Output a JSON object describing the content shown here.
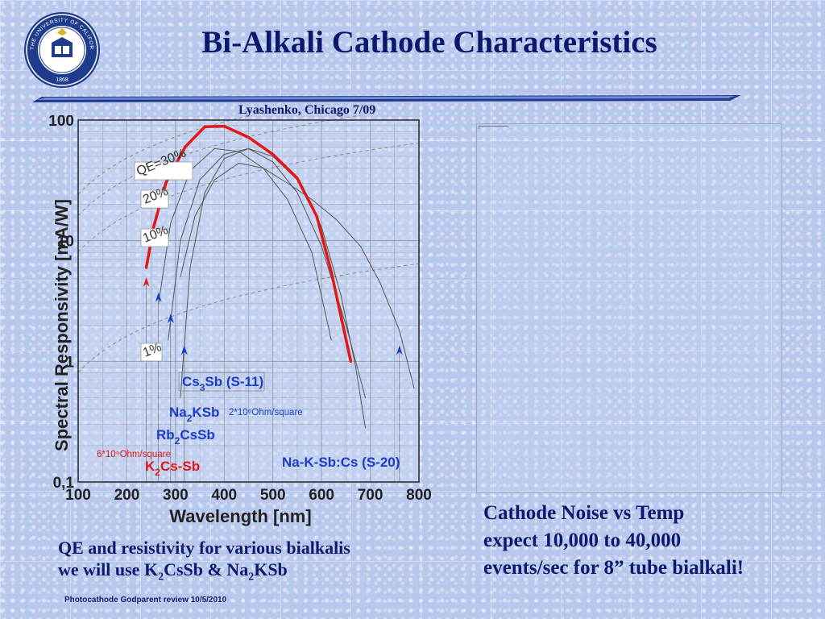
{
  "slide": {
    "title": "Bi-Alkali Cathode Characteristics",
    "attribution": "Lyashenko, Chicago 7/09",
    "seal_text": "THE UNIVERSITY OF CALIFORNIA BERKELEY",
    "seal_year": "1868",
    "noise_lines": [
      "Cathode Noise  vs Temp",
      "expect 10,000 to 40,000",
      "events/sec for 8” tube bialkali!"
    ],
    "qe_line1": "QE and resistivity  for various bialkalis",
    "qe_line2_pre": "we will use K",
    "qe_sub1": "2",
    "qe_mid": "CsSb & Na",
    "qe_sub2": "2",
    "qe_post": "KSb",
    "footer": "Photocathode Godparent review  10/5/2010"
  },
  "colors": {
    "title": "#0b1a6e",
    "red_curve": "#e01818",
    "blue_label": "#1a3cc8",
    "grid": "#8a8f99"
  },
  "chart_data": {
    "type": "line",
    "xlabel": "Wavelength [nm]",
    "ylabel": "Spectral Responsivity [mA/W]",
    "xlim": [
      100,
      800
    ],
    "ylim": [
      0.1,
      100
    ],
    "yscale": "log",
    "xticks": [
      "100",
      "200",
      "300",
      "400",
      "500",
      "600",
      "700",
      "800"
    ],
    "yticks": [
      {
        "v": 0.1,
        "label": "0,1"
      },
      {
        "v": 1,
        "label": "1"
      },
      {
        "v": 10,
        "label": "10"
      },
      {
        "v": 100,
        "label": "100"
      }
    ],
    "grid": true,
    "qe_lines": [
      {
        "label": "QE=30%",
        "qe": 0.3
      },
      {
        "label": "20%",
        "qe": 0.2
      },
      {
        "label": "10%",
        "qe": 0.1
      },
      {
        "label": "1%",
        "qe": 0.01
      }
    ],
    "series": [
      {
        "name": "K2Cs-Sb",
        "color": "#e01818",
        "width": 3.5,
        "x": [
          240,
          255,
          280,
          320,
          360,
          400,
          450,
          500,
          550,
          590,
          620,
          660
        ],
        "y": [
          6.0,
          13,
          30,
          60,
          88,
          89,
          72,
          52,
          33,
          16,
          5.5,
          1.0
        ]
      },
      {
        "name": "Cs3Sb (S-11)",
        "color": "#555555",
        "width": 1,
        "x": [
          310,
          330,
          360,
          400,
          450,
          500,
          550,
          600,
          640,
          670,
          690
        ],
        "y": [
          0.5,
          6,
          25,
          48,
          58,
          50,
          32,
          13,
          3.5,
          0.9,
          0.28
        ]
      },
      {
        "name": "Na2KSb",
        "color": "#555555",
        "width": 1,
        "x": [
          265,
          290,
          330,
          380,
          430,
          480,
          530,
          580,
          620
        ],
        "y": [
          3.0,
          14,
          38,
          58,
          55,
          40,
          22,
          8,
          1.5
        ]
      },
      {
        "name": "Rb2CsSb",
        "color": "#555555",
        "width": 1,
        "x": [
          285,
          310,
          350,
          400,
          450,
          500,
          550,
          600,
          650,
          690
        ],
        "y": [
          1.5,
          10,
          32,
          52,
          58,
          45,
          25,
          9,
          2.0,
          0.5
        ]
      },
      {
        "name": "Na-K-Sb:Cs (S-20)",
        "color": "#555555",
        "width": 1,
        "x": [
          310,
          340,
          380,
          430,
          480,
          530,
          580,
          630,
          680,
          720,
          760,
          790
        ],
        "y": [
          5,
          16,
          32,
          44,
          40,
          30,
          22,
          15,
          9,
          4.5,
          1.8,
          0.6
        ]
      }
    ],
    "cutoffs": [
      {
        "x": 240,
        "y": 4.4,
        "color": "#e01818"
      },
      {
        "x": 265,
        "y": 3.3,
        "color": "#1a3cc8"
      },
      {
        "x": 290,
        "y": 2.2,
        "color": "#1a3cc8"
      },
      {
        "x": 318,
        "y": 1.2,
        "color": "#1a3cc8"
      },
      {
        "x": 760,
        "y": 1.2,
        "color": "#1a3cc8"
      }
    ],
    "curve_labels": [
      {
        "key": "cs3sb",
        "base": "Cs",
        "sub": "3",
        "rest": "Sb (S-11)",
        "color": "#1a3cc8"
      },
      {
        "key": "na2ksb",
        "base": "Na",
        "sub": "2",
        "rest": "KSb",
        "color": "#1a3cc8"
      },
      {
        "key": "rb2cssb",
        "base": "Rb",
        "sub": "2",
        "rest": "CsSb",
        "color": "#1a3cc8"
      },
      {
        "key": "k2cssb",
        "base": "K",
        "sub": "2",
        "rest": "Cs-Sb",
        "color": "#e01818"
      },
      {
        "key": "s20",
        "base": "Na-K-Sb:Cs (S-20)",
        "sub": "",
        "rest": "",
        "color": "#1a3cc8"
      }
    ],
    "annotations": [
      {
        "key": "res_na2ksb",
        "text": "2*10⁶Ohm/square",
        "color": "#1a3cc8"
      },
      {
        "key": "res_k2cssb",
        "text": "6*10⁹Ohm/square",
        "color": "#e01818"
      }
    ]
  }
}
